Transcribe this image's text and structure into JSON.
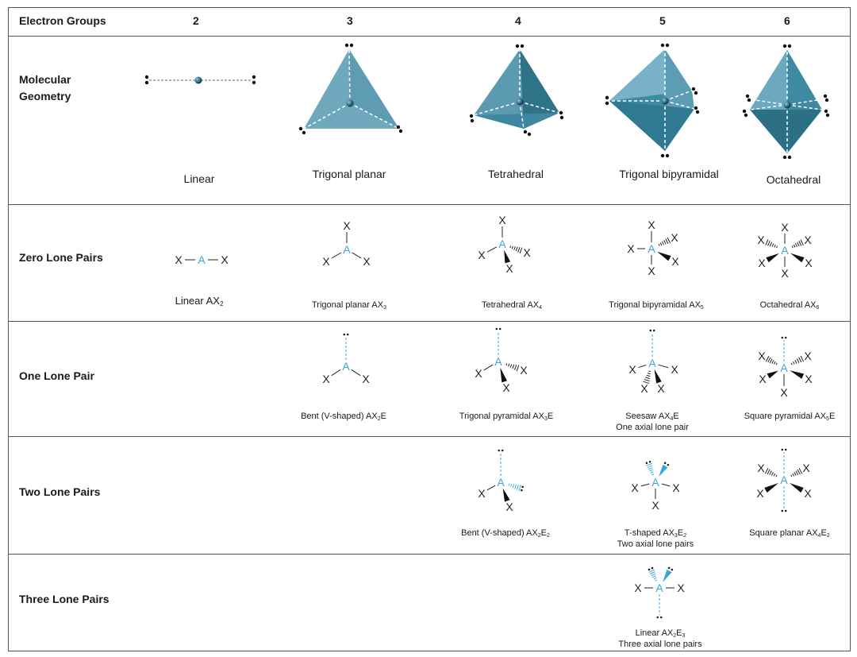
{
  "header": {
    "electron_groups_label": "Electron Groups",
    "columns": [
      "2",
      "3",
      "4",
      "5",
      "6"
    ]
  },
  "rows": {
    "molecular_geometry": "Molecular Geometry",
    "zero_lone_pairs": "Zero Lone Pairs",
    "one_lone_pair": "One Lone Pair",
    "two_lone_pairs": "Two Lone Pairs",
    "three_lone_pairs": "Three Lone Pairs"
  },
  "geometries": [
    "Linear",
    "Trigonal planar",
    "Tetrahedral",
    "Trigonal bipyramidal",
    "Octahedral"
  ],
  "atoms": {
    "central": "A",
    "ligand": "X"
  },
  "captions": {
    "linear_ax2": {
      "name": "Linear AX",
      "n": "2"
    },
    "trigonal_planar_ax3": {
      "name": "Trigonal planar AX",
      "n": "3"
    },
    "tetrahedral_ax4": {
      "name": "Tetrahedral AX",
      "n": "4"
    },
    "trigonal_bipyramidal_ax5": {
      "name": "Trigonal bipyramidal AX",
      "n": "5"
    },
    "octahedral_ax6": {
      "name": "Octahedral AX",
      "n": "6"
    },
    "bent_ax2e": {
      "name": "Bent (V-shaped) AX",
      "n": "2",
      "suffix": "E"
    },
    "trigonal_pyramidal_ax3e": {
      "name": "Trigonal pyramidal AX",
      "n": "3",
      "suffix": "E"
    },
    "seesaw_ax4e": {
      "name": "Seesaw AX",
      "n": "4",
      "suffix": "E",
      "note": "One axial lone pair"
    },
    "square_pyramidal_ax5e": {
      "name": "Square pyramidal AX",
      "n": "5",
      "suffix": "E"
    },
    "bent_ax2e2": {
      "name": "Bent (V-shaped) AX",
      "n": "2",
      "mid": "E",
      "m": "2"
    },
    "t_shaped_ax3e2": {
      "name": "T-shaped AX",
      "n": "3",
      "mid": "E",
      "m": "2",
      "note": "Two axial lone pairs"
    },
    "square_planar_ax4e2": {
      "name": "Square planar AX",
      "n": "4",
      "mid": "E",
      "m": "2"
    },
    "linear_ax2e3": {
      "name": "Linear AX",
      "n": "2",
      "mid": "E",
      "m": "3",
      "note": "Three axial lone pairs"
    }
  },
  "colors": {
    "central_atom": "#3aa6d8",
    "solid_face": "#4c9bb3",
    "dark_face": "#2e7488",
    "lone_pair_line": "#3aa6d8"
  }
}
